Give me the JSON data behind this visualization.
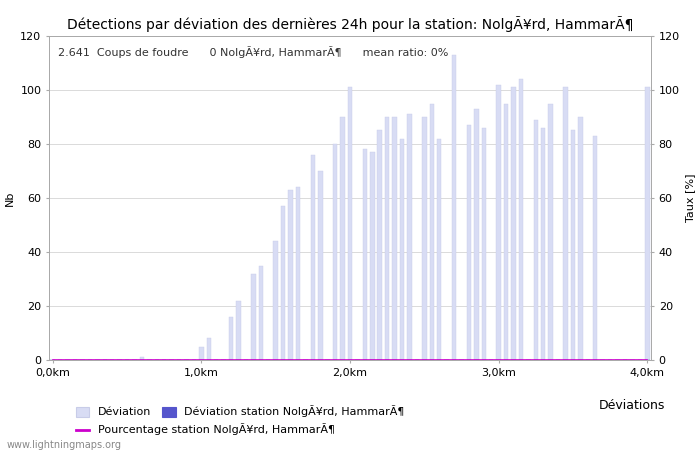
{
  "title": "Détections par déviation des dernières 24h pour la station: NolgÃ¥rd, HammarÃ¶",
  "annotation": "2.641  Coups de foudre      0 NolgÃ¥rd, HammarÃ¶      mean ratio: 0%",
  "ylabel_left": "Nb",
  "ylabel_right": "Taux [%]",
  "watermark": "www.lightningmaps.org",
  "ylim": [
    0,
    120
  ],
  "xtick_labels": [
    "0,0km",
    "1,0km",
    "2,0km",
    "3,0km",
    "4,0km"
  ],
  "xtick_positions": [
    0,
    20,
    40,
    60,
    80
  ],
  "ytick_positions": [
    0,
    20,
    40,
    60,
    80,
    100,
    120
  ],
  "bar_values": [
    0,
    0,
    0,
    0,
    0,
    0,
    0,
    0,
    0,
    0,
    0,
    0,
    1,
    0,
    0,
    0,
    0,
    0,
    0,
    0,
    5,
    8,
    0,
    0,
    16,
    22,
    0,
    32,
    35,
    0,
    44,
    57,
    63,
    64,
    0,
    76,
    70,
    0,
    80,
    90,
    101,
    0,
    78,
    77,
    85,
    90,
    90,
    82,
    91,
    0,
    90,
    95,
    82,
    0,
    113,
    0,
    87,
    93,
    86,
    0,
    102,
    95,
    101,
    104,
    0,
    89,
    86,
    95,
    0,
    101,
    85,
    90,
    0,
    83,
    0,
    0,
    0,
    0,
    0,
    0,
    101
  ],
  "station_bar_values": [
    0,
    0,
    0,
    0,
    0,
    0,
    0,
    0,
    0,
    0,
    0,
    0,
    0,
    0,
    0,
    0,
    0,
    0,
    0,
    0,
    0,
    0,
    0,
    0,
    0,
    0,
    0,
    0,
    0,
    0,
    0,
    0,
    0,
    0,
    0,
    0,
    0,
    0,
    0,
    0,
    0,
    0,
    0,
    0,
    0,
    0,
    0,
    0,
    0,
    0,
    0,
    0,
    0,
    0,
    0,
    0,
    0,
    0,
    0,
    0,
    0,
    0,
    0,
    0,
    0,
    0,
    0,
    0,
    0,
    0,
    0,
    0,
    0,
    0,
    0,
    0,
    0,
    0,
    0,
    0,
    0
  ],
  "bar_color_light": "#d8dcf4",
  "bar_color_dark": "#5555cc",
  "bar_edge_color": "#c8cce8",
  "percentage_line_color": "#cc00cc",
  "grid_color": "#cccccc",
  "background_color": "#ffffff",
  "legend_entries": [
    "Déviation",
    "Déviation station NolgÃ¥rd, HammarÃ¶",
    "Déviations",
    "Pourcentage station NolgÃ¥rd, HammarÃ¶"
  ],
  "title_fontsize": 10,
  "axis_fontsize": 8,
  "annotation_fontsize": 8
}
